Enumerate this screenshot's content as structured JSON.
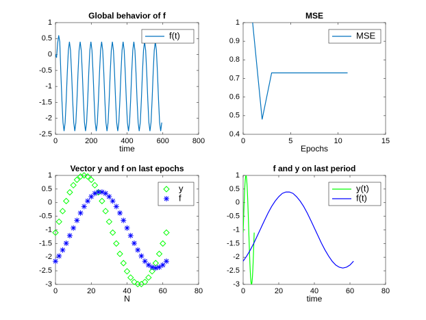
{
  "chart_data": [
    {
      "type": "line",
      "title": "Global behavior of f",
      "xlabel": "time",
      "x": [
        0,
        6,
        12,
        18,
        24,
        30,
        36,
        42,
        48,
        54,
        60,
        66,
        72,
        78,
        84,
        90,
        96,
        102,
        108,
        114,
        120,
        126,
        132,
        138,
        144,
        150,
        156,
        162,
        168,
        174,
        180,
        186,
        192,
        198,
        204,
        210,
        216,
        222,
        228,
        234,
        240,
        246,
        252,
        258,
        264,
        270,
        276,
        282,
        288,
        294,
        300,
        306,
        312,
        318,
        324,
        330,
        336,
        342,
        348,
        354,
        360,
        366,
        372,
        378,
        384,
        390,
        396,
        402,
        408,
        414,
        420,
        426,
        432,
        438,
        444,
        450,
        456,
        462,
        468,
        474,
        480,
        486,
        492,
        498,
        504,
        510,
        516,
        522,
        528,
        534,
        540,
        546,
        552,
        558,
        564,
        570,
        576,
        582,
        588,
        594
      ],
      "series": [
        {
          "name": "f(t)",
          "color": "#0072bd",
          "values": [
            0,
            -0.1,
            0.35,
            0.6,
            0.4,
            -0.57,
            -1.43,
            -2.13,
            -2.4,
            -2.13,
            -1.43,
            -0.57,
            0.13,
            0.4,
            0.13,
            -0.57,
            -1.43,
            -2.13,
            -2.4,
            -2.13,
            -1.43,
            -0.57,
            0.13,
            0.4,
            0.13,
            -0.57,
            -1.43,
            -2.13,
            -2.4,
            -2.13,
            -1.43,
            -0.57,
            0.13,
            0.4,
            0.13,
            -0.57,
            -1.43,
            -2.13,
            -2.4,
            -2.13,
            -1.43,
            -0.57,
            0.13,
            0.4,
            0.13,
            -0.57,
            -1.43,
            -2.13,
            -2.4,
            -2.13,
            -1.43,
            -0.57,
            0.13,
            0.4,
            0.13,
            -0.57,
            -1.43,
            -2.13,
            -2.4,
            -2.13,
            -1.43,
            -0.57,
            0.13,
            0.4,
            0.13,
            -0.57,
            -1.43,
            -2.13,
            -2.4,
            -2.13,
            -1.43,
            -0.57,
            0.13,
            0.4,
            0.13,
            -0.57,
            -1.43,
            -2.13,
            -2.4,
            -2.13,
            -1.43,
            -0.57,
            0.13,
            0.4,
            0.13,
            -0.57,
            -1.43,
            -2.13,
            -2.4,
            -2.13,
            -1.43,
            -0.57,
            0.13,
            0.4,
            0.13,
            -0.57,
            -1.43,
            -2.13,
            -2.4,
            -2.13
          ]
        }
      ],
      "xlim": [
        0,
        800
      ],
      "xticks": [
        0,
        200,
        400,
        600,
        800
      ],
      "ylim": [
        -2.5,
        1
      ],
      "yticks": [
        -2.5,
        -2,
        -1.5,
        -1,
        -0.5,
        0,
        0.5,
        1
      ],
      "grid": false,
      "legend": "upper right"
    },
    {
      "type": "line",
      "title": "MSE",
      "xlabel": "Epochs",
      "x": [
        1,
        2,
        3,
        4,
        5,
        6,
        7,
        8,
        9,
        10,
        11
      ],
      "series": [
        {
          "name": "MSE",
          "color": "#0072bd",
          "values": [
            1,
            0.48,
            0.73,
            0.73,
            0.73,
            0.73,
            0.73,
            0.73,
            0.73,
            0.73,
            0.73
          ]
        }
      ],
      "xlim": [
        0,
        15
      ],
      "xticks": [
        0,
        5,
        10,
        15
      ],
      "ylim": [
        0.4,
        1
      ],
      "yticks": [
        0.4,
        0.5,
        0.6,
        0.7,
        0.8,
        0.9,
        1
      ],
      "grid": false,
      "legend": "upper right"
    },
    {
      "type": "scatter",
      "title": "Vector y and f on last epochs",
      "xlabel": "N",
      "x": [
        0,
        2,
        4,
        6,
        8,
        10,
        12,
        14,
        16,
        18,
        20,
        22,
        24,
        26,
        28,
        30,
        32,
        34,
        36,
        38,
        40,
        42,
        44,
        46,
        48,
        50,
        52,
        54,
        56,
        58,
        60,
        62
      ],
      "series": [
        {
          "name": "y",
          "color": "#00ff00",
          "marker": "diamond",
          "values": [
            -1.1,
            -0.7,
            -0.31,
            0.06,
            0.38,
            0.64,
            0.84,
            0.96,
            1,
            0.96,
            0.84,
            0.64,
            0.38,
            0.06,
            -0.31,
            -0.7,
            -1.1,
            -1.5,
            -1.88,
            -2.22,
            -2.52,
            -2.75,
            -2.91,
            -2.99,
            -2.99,
            -2.91,
            -2.75,
            -2.52,
            -2.22,
            -1.88,
            -1.5,
            -1.1
          ]
        },
        {
          "name": "f",
          "color": "#0000ff",
          "marker": "asterisk",
          "values": [
            -2.15,
            -1.96,
            -1.74,
            -1.49,
            -1.21,
            -0.93,
            -0.65,
            -0.38,
            -0.14,
            0.06,
            0.22,
            0.34,
            0.39,
            0.39,
            0.34,
            0.22,
            0.06,
            -0.14,
            -0.38,
            -0.65,
            -0.93,
            -1.21,
            -1.49,
            -1.74,
            -1.96,
            -2.15,
            -2.29,
            -2.37,
            -2.4,
            -2.37,
            -2.29,
            -2.15
          ]
        }
      ],
      "xlim": [
        0,
        80
      ],
      "xticks": [
        0,
        20,
        40,
        60,
        80
      ],
      "ylim": [
        -3,
        1
      ],
      "yticks": [
        -3,
        -2.5,
        -2,
        -1.5,
        -1,
        -0.5,
        0,
        0.5,
        1
      ],
      "grid": false,
      "legend": "upper right"
    },
    {
      "type": "line",
      "title": "f and y on last period",
      "xlabel": "time",
      "series": [
        {
          "name": "y(t)",
          "color": "#00ff00",
          "x": [
            0,
            0.2,
            0.4,
            0.6,
            0.8,
            1,
            1.2,
            1.4,
            1.6,
            1.8,
            2,
            2.2,
            2.4,
            2.6,
            2.8,
            3,
            3.2,
            3.4,
            3.6,
            3.8,
            4,
            4.2,
            4.4,
            4.6,
            4.8,
            5,
            5.2,
            5.4,
            5.6,
            5.8,
            6,
            6.2
          ],
          "values": [
            -1.1,
            -0.7,
            -0.31,
            0.06,
            0.38,
            0.64,
            0.84,
            0.96,
            1,
            0.96,
            0.84,
            0.64,
            0.38,
            0.06,
            -0.31,
            -0.7,
            -1.1,
            -1.5,
            -1.88,
            -2.22,
            -2.52,
            -2.75,
            -2.91,
            -2.99,
            -2.99,
            -2.91,
            -2.75,
            -2.52,
            -2.22,
            -1.88,
            -1.5,
            -1.1
          ]
        },
        {
          "name": "f(t)",
          "color": "#0000ff",
          "x": [
            0,
            2,
            4,
            6,
            8,
            10,
            12,
            14,
            16,
            18,
            20,
            22,
            24,
            26,
            28,
            30,
            32,
            34,
            36,
            38,
            40,
            42,
            44,
            46,
            48,
            50,
            52,
            54,
            56,
            58,
            60,
            62
          ],
          "values": [
            -2.15,
            -1.96,
            -1.74,
            -1.49,
            -1.21,
            -0.93,
            -0.65,
            -0.38,
            -0.14,
            0.06,
            0.22,
            0.34,
            0.39,
            0.39,
            0.34,
            0.22,
            0.06,
            -0.14,
            -0.38,
            -0.65,
            -0.93,
            -1.21,
            -1.49,
            -1.74,
            -1.96,
            -2.15,
            -2.29,
            -2.37,
            -2.4,
            -2.37,
            -2.29,
            -2.15
          ]
        }
      ],
      "xlim": [
        0,
        80
      ],
      "xticks": [
        0,
        20,
        40,
        60,
        80
      ],
      "ylim": [
        -3,
        1
      ],
      "yticks": [
        -3,
        -2.5,
        -2,
        -1.5,
        -1,
        -0.5,
        0,
        0.5,
        1
      ],
      "grid": false,
      "legend": "upper right"
    }
  ]
}
